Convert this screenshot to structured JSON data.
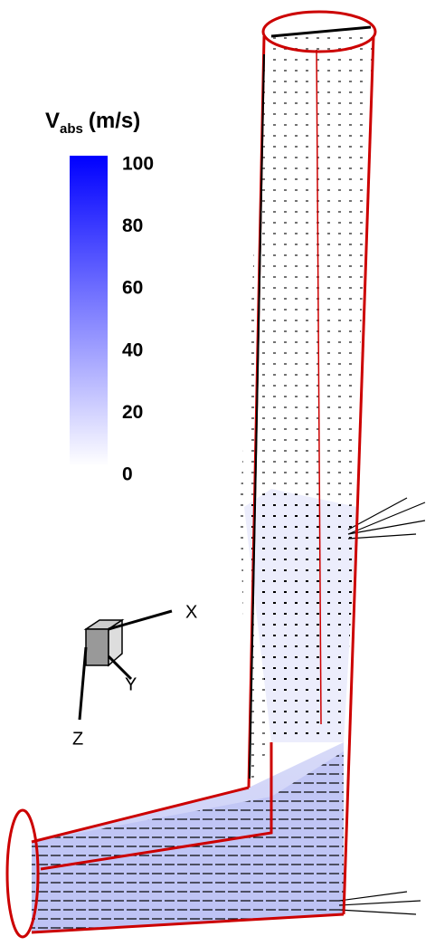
{
  "colorbar": {
    "title": "V",
    "title_sub": "abs",
    "title_unit": "(m/s)",
    "range": [
      0,
      100
    ],
    "ticks": [
      0,
      20,
      40,
      60,
      80,
      100
    ],
    "color_min": "#ffffff",
    "color_max": "#0000ff"
  },
  "axes_triad": {
    "x": "X",
    "y": "Y",
    "z": "Z"
  }
}
